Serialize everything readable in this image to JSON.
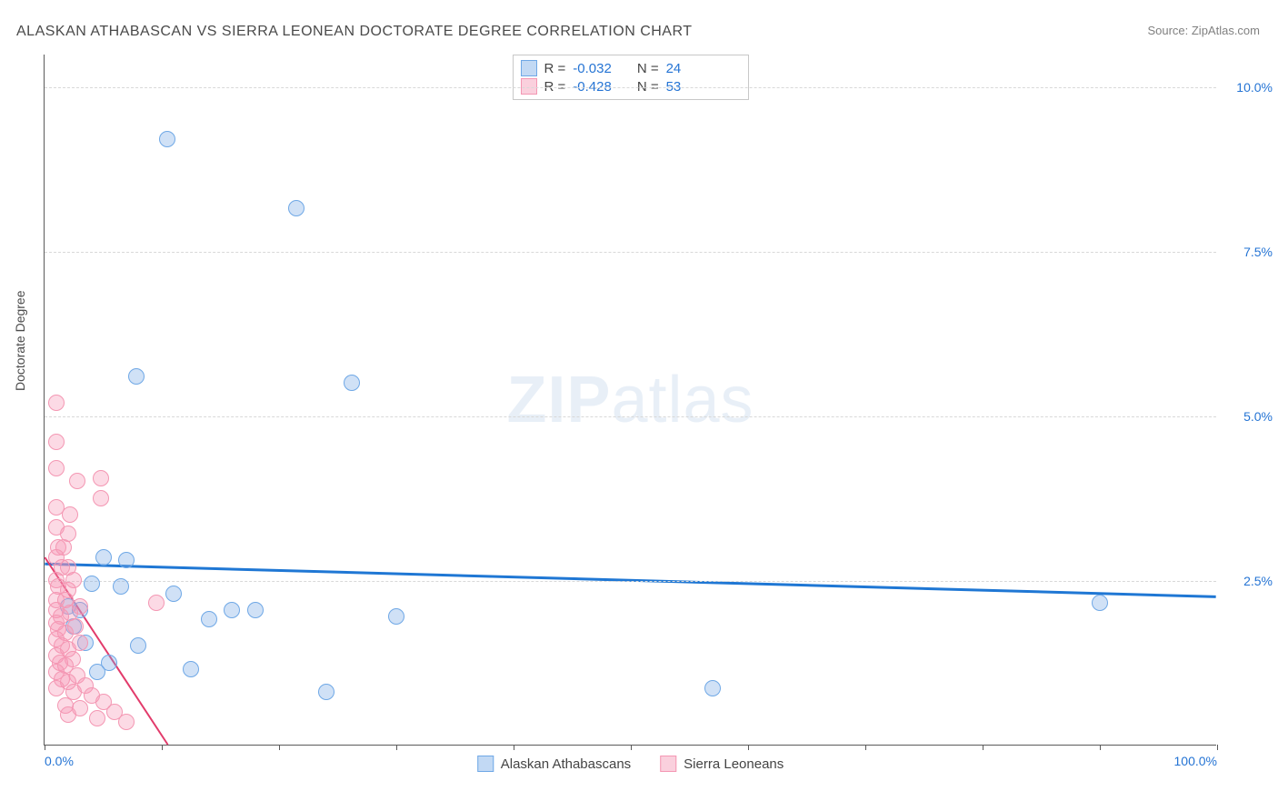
{
  "title": "ALASKAN ATHABASCAN VS SIERRA LEONEAN DOCTORATE DEGREE CORRELATION CHART",
  "source_label": "Source: ",
  "source_name": "ZipAtlas.com",
  "ylabel": "Doctorate Degree",
  "watermark": {
    "bold": "ZIP",
    "light": "atlas"
  },
  "chart": {
    "type": "scatter",
    "xlim": [
      0,
      100
    ],
    "ylim": [
      0,
      10.5
    ],
    "y_gridlines": [
      2.5,
      5.0,
      7.5,
      10.0
    ],
    "y_tick_labels": [
      "2.5%",
      "5.0%",
      "7.5%",
      "10.0%"
    ],
    "x_ticks": [
      0,
      10,
      20,
      30,
      40,
      50,
      60,
      70,
      80,
      90,
      100
    ],
    "x_tick_labels_shown": {
      "0": "0.0%",
      "100": "100.0%"
    },
    "background_color": "#ffffff",
    "grid_color": "#d8d8d8",
    "axis_color": "#5a5a5a",
    "tick_label_color": "#2574d4",
    "series": [
      {
        "name": "Alaskan Athabascans",
        "fill": "rgba(120,170,230,0.35)",
        "stroke": "#6fa8e6",
        "marker_radius": 9,
        "R": "-0.032",
        "N": "24",
        "trend": {
          "x1": 0,
          "y1": 2.75,
          "x2": 100,
          "y2": 2.25,
          "color": "#1f77d4",
          "width": 3
        },
        "points": [
          [
            10.5,
            9.2
          ],
          [
            21.5,
            8.15
          ],
          [
            7.8,
            5.6
          ],
          [
            26.2,
            5.5
          ],
          [
            90.0,
            2.15
          ],
          [
            30.0,
            1.95
          ],
          [
            57.0,
            0.85
          ],
          [
            24.0,
            0.8
          ],
          [
            5.0,
            2.85
          ],
          [
            7.0,
            2.8
          ],
          [
            14.0,
            1.9
          ],
          [
            18.0,
            2.05
          ],
          [
            4.0,
            2.45
          ],
          [
            8.0,
            1.5
          ],
          [
            12.5,
            1.15
          ],
          [
            3.0,
            2.05
          ],
          [
            6.5,
            2.4
          ],
          [
            3.5,
            1.55
          ],
          [
            4.5,
            1.1
          ],
          [
            11.0,
            2.3
          ],
          [
            2.0,
            2.1
          ],
          [
            5.5,
            1.25
          ],
          [
            2.5,
            1.8
          ],
          [
            16.0,
            2.05
          ]
        ]
      },
      {
        "name": "Sierra Leoneans",
        "fill": "rgba(245,150,180,0.35)",
        "stroke": "#f497b3",
        "marker_radius": 9,
        "R": "-0.428",
        "N": "53",
        "trend": {
          "x1": 0,
          "y1": 2.85,
          "x2": 10.5,
          "y2": 0.0,
          "color": "#e23b6b",
          "width": 2
        },
        "points": [
          [
            1.0,
            5.2
          ],
          [
            1.0,
            4.6
          ],
          [
            1.0,
            4.2
          ],
          [
            2.8,
            4.0
          ],
          [
            4.8,
            4.05
          ],
          [
            4.8,
            3.75
          ],
          [
            1.0,
            3.6
          ],
          [
            2.2,
            3.5
          ],
          [
            1.0,
            3.3
          ],
          [
            2.0,
            3.2
          ],
          [
            1.2,
            3.0
          ],
          [
            1.6,
            3.0
          ],
          [
            9.5,
            2.15
          ],
          [
            1.0,
            2.85
          ],
          [
            2.0,
            2.7
          ],
          [
            1.5,
            2.7
          ],
          [
            1.0,
            2.5
          ],
          [
            2.5,
            2.5
          ],
          [
            1.2,
            2.4
          ],
          [
            2.0,
            2.35
          ],
          [
            1.0,
            2.2
          ],
          [
            1.8,
            2.2
          ],
          [
            3.0,
            2.1
          ],
          [
            1.0,
            2.05
          ],
          [
            2.2,
            2.0
          ],
          [
            1.4,
            1.95
          ],
          [
            1.0,
            1.85
          ],
          [
            2.6,
            1.8
          ],
          [
            1.2,
            1.75
          ],
          [
            1.8,
            1.7
          ],
          [
            1.0,
            1.6
          ],
          [
            3.0,
            1.55
          ],
          [
            1.5,
            1.5
          ],
          [
            2.0,
            1.45
          ],
          [
            1.0,
            1.35
          ],
          [
            2.4,
            1.3
          ],
          [
            1.3,
            1.25
          ],
          [
            1.8,
            1.2
          ],
          [
            1.0,
            1.1
          ],
          [
            2.8,
            1.05
          ],
          [
            1.5,
            1.0
          ],
          [
            2.0,
            0.95
          ],
          [
            3.5,
            0.9
          ],
          [
            1.0,
            0.85
          ],
          [
            2.5,
            0.8
          ],
          [
            4.0,
            0.75
          ],
          [
            5.0,
            0.65
          ],
          [
            1.8,
            0.6
          ],
          [
            3.0,
            0.55
          ],
          [
            6.0,
            0.5
          ],
          [
            2.0,
            0.45
          ],
          [
            4.5,
            0.4
          ],
          [
            7.0,
            0.35
          ]
        ]
      }
    ]
  },
  "stats_box": {
    "rows": [
      {
        "swatch_fill": "rgba(120,170,230,0.45)",
        "swatch_border": "#6fa8e6",
        "r_label": "R =",
        "r_val": "-0.032",
        "n_label": "N =",
        "n_val": "24"
      },
      {
        "swatch_fill": "rgba(245,150,180,0.45)",
        "swatch_border": "#f497b3",
        "r_label": "R =",
        "r_val": "-0.428",
        "n_label": "N =",
        "n_val": "53"
      }
    ]
  },
  "legend": [
    {
      "swatch_fill": "rgba(120,170,230,0.45)",
      "swatch_border": "#6fa8e6",
      "label": "Alaskan Athabascans"
    },
    {
      "swatch_fill": "rgba(245,150,180,0.45)",
      "swatch_border": "#f497b3",
      "label": "Sierra Leoneans"
    }
  ]
}
